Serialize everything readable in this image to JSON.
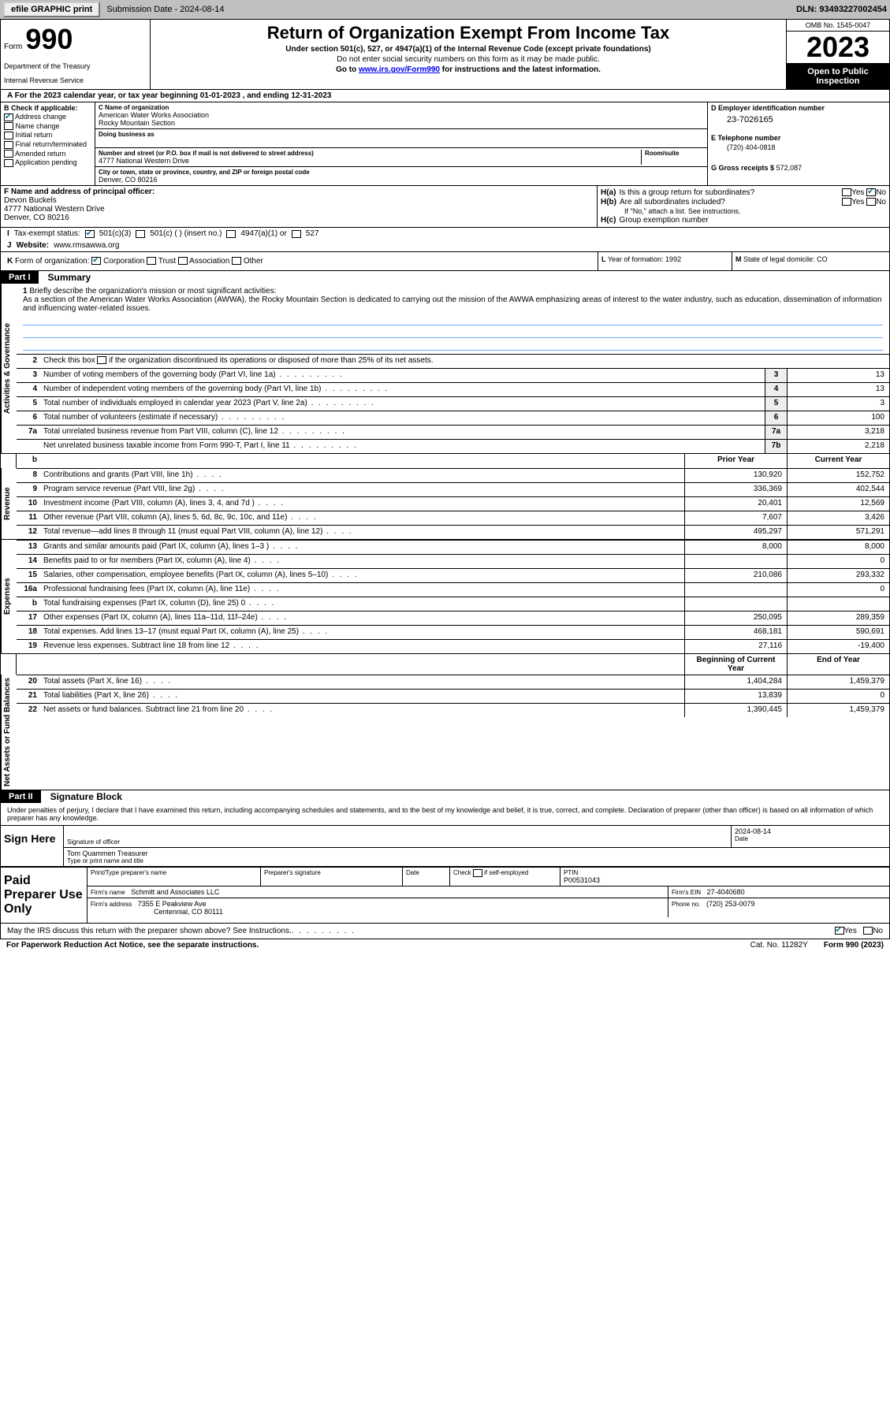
{
  "topbar": {
    "efile": "efile GRAPHIC print",
    "submission": "Submission Date - 2024-08-14",
    "dln": "DLN: 93493227002454"
  },
  "header": {
    "form_label": "Form",
    "form_num": "990",
    "title": "Return of Organization Exempt From Income Tax",
    "subtitle": "Under section 501(c), 527, or 4947(a)(1) of the Internal Revenue Code (except private foundations)",
    "note": "Do not enter social security numbers on this form as it may be made public.",
    "goto_pre": "Go to ",
    "goto_link": "www.irs.gov/Form990",
    "goto_post": " for instructions and the latest information.",
    "dept": "Department of the Treasury",
    "irs": "Internal Revenue Service",
    "omb": "OMB No. 1545-0047",
    "year": "2023",
    "inspection": "Open to Public Inspection"
  },
  "lineA": "A For the 2023 calendar year, or tax year beginning 01-01-2023    , and ending 12-31-2023",
  "checkB": {
    "title": "B Check if applicable:",
    "addr": "Address change",
    "name": "Name change",
    "init": "Initial return",
    "final": "Final return/terminated",
    "amend": "Amended return",
    "appl": "Application pending"
  },
  "orgC": {
    "c_label": "C Name of organization",
    "name1": "American Water Works Association",
    "name2": "Rocky Mountain Section",
    "dba_label": "Doing business as",
    "addr_label": "Number and street (or P.O. box if mail is not delivered to street address)",
    "room_label": "Room/suite",
    "addr": "4777 National Western Drive",
    "city_label": "City or town, state or province, country, and ZIP or foreign postal code",
    "city": "Denver, CO  80216"
  },
  "colD": {
    "d_label": "D Employer identification number",
    "ein": "23-7026165",
    "e_label": "E Telephone number",
    "phone": "(720) 404-0818",
    "g_label": "G Gross receipts $",
    "gross": "572,087"
  },
  "officer": {
    "f_label": "F Name and address of principal officer:",
    "name": "Devon Buckels",
    "addr": "4777 National Western Drive",
    "city": "Denver, CO  80216"
  },
  "colH": {
    "ha_label": "H(a)",
    "ha_text": "Is this a group return for subordinates?",
    "hb_label": "H(b)",
    "hb_text": "Are all subordinates included?",
    "hb_note": "If \"No,\" attach a list. See instructions.",
    "hc_label": "H(c)",
    "hc_text": "Group exemption number",
    "yes": "Yes",
    "no": "No"
  },
  "rowI": {
    "label": "I",
    "text": "Tax-exempt status:",
    "c3": "501(c)(3)",
    "c_other": "501(c) (  ) (insert no.)",
    "a1": "4947(a)(1) or",
    "s527": "527"
  },
  "rowJ": {
    "label": "J",
    "text": "Website:",
    "url": "www.rmsawwa.org"
  },
  "rowK": {
    "label": "K",
    "text": "Form of organization:",
    "corp": "Corporation",
    "trust": "Trust",
    "assoc": "Association",
    "other": "Other",
    "l_label": "L",
    "l_text": "Year of formation: 1992",
    "m_label": "M",
    "m_text": "State of legal domicile: CO"
  },
  "part1": {
    "num": "Part I",
    "title": "Summary",
    "q1_num": "1",
    "q1_text": "Briefly describe the organization's mission or most significant activities:",
    "mission": "As a section of the American Water Works Association (AWWA), the Rocky Mountain Section is dedicated to carrying out the mission of the AWWA emphasizing areas of interest to the water industry, such as education, dissemination of information and influencing water-related issues.",
    "q2_num": "2",
    "q2_text": "Check this box      if the organization discontinued its operations or disposed of more than 25% of its net assets.",
    "sideA": "Activities & Governance",
    "sideR": "Revenue",
    "sideE": "Expenses",
    "sideN": "Net Assets or Fund Balances",
    "prior": "Prior Year",
    "current": "Current Year",
    "begin": "Beginning of Current Year",
    "end": "End of Year",
    "rows_gov": [
      {
        "n": "3",
        "t": "Number of voting members of the governing body (Part VI, line 1a)",
        "b": "3",
        "v": "13"
      },
      {
        "n": "4",
        "t": "Number of independent voting members of the governing body (Part VI, line 1b)",
        "b": "4",
        "v": "13"
      },
      {
        "n": "5",
        "t": "Total number of individuals employed in calendar year 2023 (Part V, line 2a)",
        "b": "5",
        "v": "3"
      },
      {
        "n": "6",
        "t": "Total number of volunteers (estimate if necessary)",
        "b": "6",
        "v": "100"
      },
      {
        "n": "7a",
        "t": "Total unrelated business revenue from Part VIII, column (C), line 12",
        "b": "7a",
        "v": "3,218"
      },
      {
        "n": "",
        "t": "Net unrelated business taxable income from Form 990-T, Part I, line 11",
        "b": "7b",
        "v": "2,218"
      }
    ],
    "rows_rev": [
      {
        "n": "8",
        "t": "Contributions and grants (Part VIII, line 1h)",
        "p": "130,920",
        "c": "152,752"
      },
      {
        "n": "9",
        "t": "Program service revenue (Part VIII, line 2g)",
        "p": "336,369",
        "c": "402,544"
      },
      {
        "n": "10",
        "t": "Investment income (Part VIII, column (A), lines 3, 4, and 7d )",
        "p": "20,401",
        "c": "12,569"
      },
      {
        "n": "11",
        "t": "Other revenue (Part VIII, column (A), lines 5, 6d, 8c, 9c, 10c, and 11e)",
        "p": "7,607",
        "c": "3,426"
      },
      {
        "n": "12",
        "t": "Total revenue—add lines 8 through 11 (must equal Part VIII, column (A), line 12)",
        "p": "495,297",
        "c": "571,291"
      }
    ],
    "rows_exp": [
      {
        "n": "13",
        "t": "Grants and similar amounts paid (Part IX, column (A), lines 1–3 )",
        "p": "8,000",
        "c": "8,000"
      },
      {
        "n": "14",
        "t": "Benefits paid to or for members (Part IX, column (A), line 4)",
        "p": "",
        "c": "0"
      },
      {
        "n": "15",
        "t": "Salaries, other compensation, employee benefits (Part IX, column (A), lines 5–10)",
        "p": "210,086",
        "c": "293,332"
      },
      {
        "n": "16a",
        "t": "Professional fundraising fees (Part IX, column (A), line 11e)",
        "p": "",
        "c": "0"
      },
      {
        "n": "b",
        "t": "Total fundraising expenses (Part IX, column (D), line 25) 0",
        "p": "",
        "c": ""
      },
      {
        "n": "17",
        "t": "Other expenses (Part IX, column (A), lines 11a–11d, 11f–24e)",
        "p": "250,095",
        "c": "289,359"
      },
      {
        "n": "18",
        "t": "Total expenses. Add lines 13–17 (must equal Part IX, column (A), line 25)",
        "p": "468,181",
        "c": "590,691"
      },
      {
        "n": "19",
        "t": "Revenue less expenses. Subtract line 18 from line 12",
        "p": "27,116",
        "c": "-19,400"
      }
    ],
    "rows_net": [
      {
        "n": "20",
        "t": "Total assets (Part X, line 16)",
        "p": "1,404,284",
        "c": "1,459,379"
      },
      {
        "n": "21",
        "t": "Total liabilities (Part X, line 26)",
        "p": "13,839",
        "c": "0"
      },
      {
        "n": "22",
        "t": "Net assets or fund balances. Subtract line 21 from line 20",
        "p": "1,390,445",
        "c": "1,459,379"
      }
    ]
  },
  "part2": {
    "num": "Part II",
    "title": "Signature Block",
    "decl": "Under penalties of perjury, I declare that I have examined this return, including accompanying schedules and statements, and to the best of my knowledge and belief, it is true, correct, and complete. Declaration of preparer (other than officer) is based on all information of which preparer has any knowledge.",
    "sign_here": "Sign Here",
    "sig_officer": "Signature of officer",
    "date": "Date",
    "date_val": "2024-08-14",
    "officer_name": "Tom Quammen  Treasurer",
    "type_name": "Type or print name and title",
    "paid": "Paid Preparer Use Only",
    "prep_name_lbl": "Print/Type preparer's name",
    "prep_sig_lbl": "Preparer's signature",
    "date_lbl": "Date",
    "check_if": "Check        if self-employed",
    "ptin_lbl": "PTIN",
    "ptin": "P00531043",
    "firm_name_lbl": "Firm's name",
    "firm_name": "Schmitt and Associates LLC",
    "firm_ein_lbl": "Firm's EIN",
    "firm_ein": "27-4040680",
    "firm_addr_lbl": "Firm's address",
    "firm_addr1": "7355 E Peakview Ave",
    "firm_addr2": "Centennial, CO  80111",
    "phone_lbl": "Phone no.",
    "phone": "(720) 253-0079",
    "may_discuss": "May the IRS discuss this return with the preparer shown above? See Instructions.",
    "yes": "Yes",
    "no": "No"
  },
  "footer": {
    "paperwork": "For Paperwork Reduction Act Notice, see the separate instructions.",
    "cat": "Cat. No. 11282Y",
    "form": "Form 990 (2023)"
  }
}
